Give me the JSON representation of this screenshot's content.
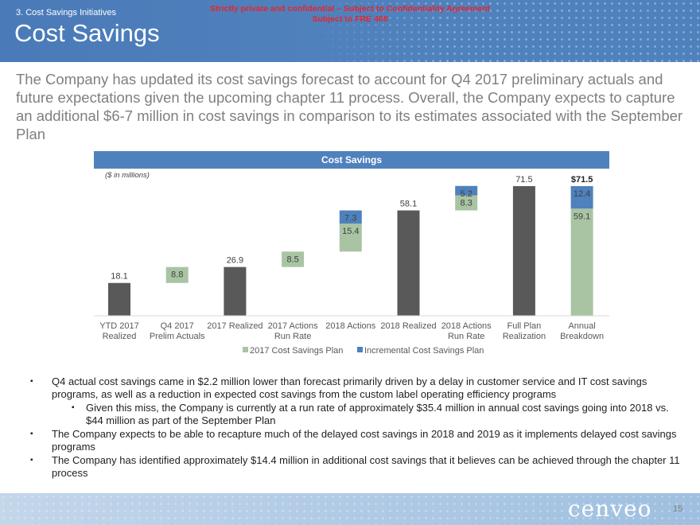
{
  "header": {
    "section": "3. Cost Savings Initiatives",
    "title": "Cost Savings",
    "confidential_line1": "Strictly private and confidential – Subject to Confidentiality Agreement",
    "confidential_line2": "Subject to FRE 408"
  },
  "intro": "The Company has updated its cost savings forecast to account for Q4 2017 preliminary actuals and future expectations given the upcoming chapter 11 process.  Overall, the Company expects to capture an additional $6-7 million in cost savings in comparison to its estimates associated with the September Plan",
  "chart_data": {
    "type": "bar",
    "subtype": "waterfall",
    "title": "Cost Savings",
    "units_note": "($ in millions)",
    "categories": [
      [
        "YTD 2017",
        "Realized"
      ],
      [
        "Q4 2017",
        "Prelim Actuals"
      ],
      [
        "2017 Realized",
        ""
      ],
      [
        "2017 Actions",
        "Run Rate"
      ],
      [
        "2018 Actions",
        ""
      ],
      [
        "2018 Realized",
        ""
      ],
      [
        "2018 Actions",
        "Run Rate"
      ],
      [
        "Full Plan",
        "Realization"
      ],
      [
        "Annual",
        "Breakdown"
      ]
    ],
    "ylim": [
      0,
      75
    ],
    "colors": {
      "total": "#595959",
      "plan": "#a9c4a3",
      "incremental": "#4f81bd"
    },
    "bars": [
      {
        "kind": "total",
        "start": 0,
        "value": 18.1,
        "label": "18.1"
      },
      {
        "kind": "plan",
        "start": 18.1,
        "value": 8.8,
        "label": "8.8"
      },
      {
        "kind": "total",
        "start": 0,
        "value": 26.9,
        "label": "26.9"
      },
      {
        "kind": "plan",
        "start": 26.9,
        "value": 8.5,
        "label": "8.5"
      },
      {
        "kind": "stack",
        "segments": [
          {
            "series": "plan",
            "start": 35.4,
            "value": 15.4,
            "label": "15.4"
          },
          {
            "series": "incremental",
            "start": 50.8,
            "value": 7.3,
            "label": "7.3"
          }
        ]
      },
      {
        "kind": "total",
        "start": 0,
        "value": 58.1,
        "label": "58.1"
      },
      {
        "kind": "stack",
        "segments": [
          {
            "series": "plan",
            "start": 58.1,
            "value": 8.3,
            "label": "8.3"
          },
          {
            "series": "incremental",
            "start": 66.4,
            "value": 5.2,
            "label": "5.2"
          }
        ]
      },
      {
        "kind": "total",
        "start": 0,
        "value": 71.5,
        "label": "71.5"
      },
      {
        "kind": "stack",
        "top_label": "$71.5",
        "segments": [
          {
            "series": "plan",
            "start": 0,
            "value": 59.1,
            "label": "59.1"
          },
          {
            "series": "incremental",
            "start": 59.1,
            "value": 12.4,
            "label": "12.4"
          }
        ]
      }
    ],
    "legend": [
      {
        "series": "plan",
        "label": "2017 Cost Savings Plan"
      },
      {
        "series": "incremental",
        "label": "Incremental Cost Savings Plan"
      }
    ],
    "legend_position": "bottom"
  },
  "bullets": [
    {
      "level": 1,
      "text": "Q4 actual cost savings came in $2.2 million lower than forecast primarily driven by a delay in customer service and IT cost savings programs, as well as a reduction in expected cost savings from the custom label operating efficiency programs"
    },
    {
      "level": 2,
      "text": "Given this miss, the Company is currently at a run rate of approximately $35.4 million in annual cost savings going into 2018 vs. $44 million as part of the September Plan"
    },
    {
      "level": 1,
      "text": "The Company expects to be able to recapture much of the delayed cost savings in 2018 and 2019 as it implements delayed cost savings programs"
    },
    {
      "level": 1,
      "text": "The Company has identified approximately $14.4 million in additional cost savings that it believes can be achieved through the chapter 11 process"
    }
  ],
  "footer": {
    "logo": "cenveo",
    "page_number": "15"
  }
}
